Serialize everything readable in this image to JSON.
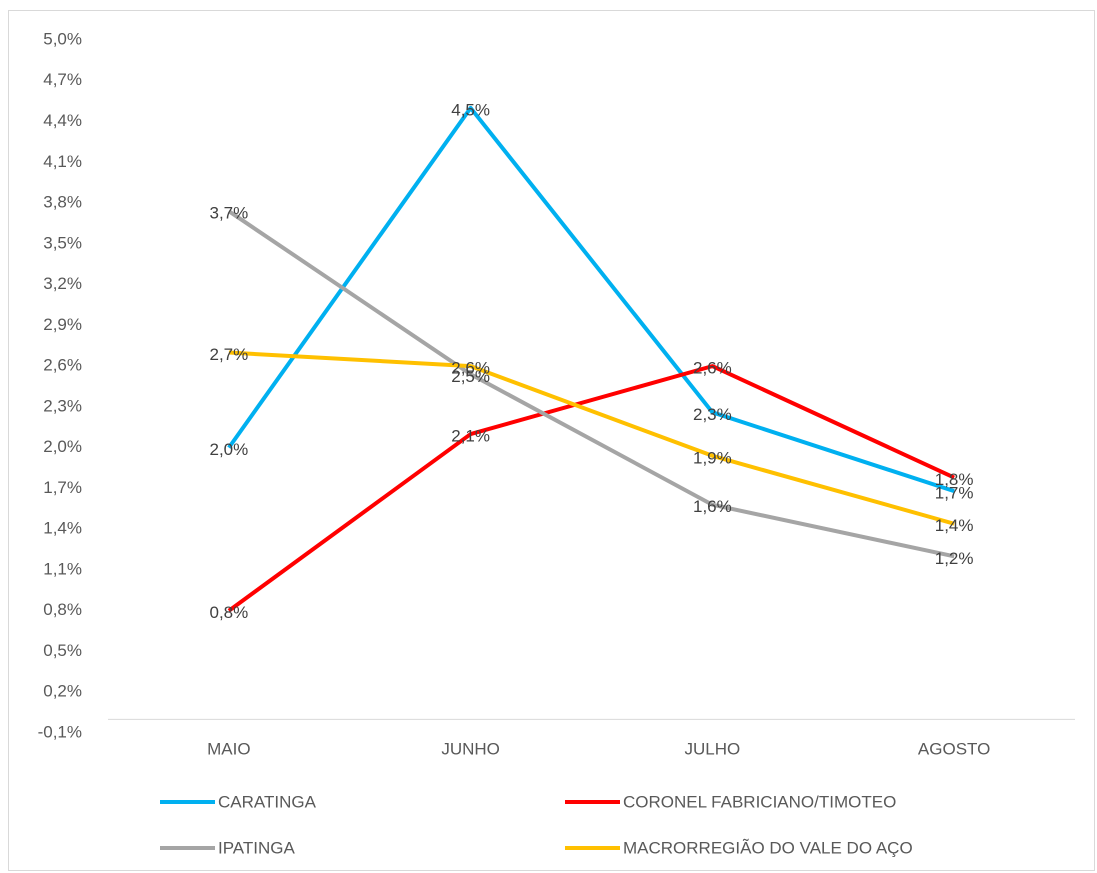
{
  "chart_data": {
    "type": "line",
    "categories": [
      "MAIO",
      "JUNHO",
      "JULHO",
      "AGOSTO"
    ],
    "series": [
      {
        "name": "CARATINGA",
        "color": "#00b0f0",
        "values": [
          2.0,
          4.5,
          2.26,
          1.68
        ],
        "value_labels": [
          "2,0%",
          "4,5%",
          "2,3%",
          "1,7%"
        ]
      },
      {
        "name": "CORONEL FABRICIANO/TIMOTEO",
        "color": "#ff0000",
        "values": [
          0.8,
          2.1,
          2.6,
          1.78
        ],
        "value_labels": [
          "0,8%",
          "2,1%",
          "2,6%",
          "1,8%"
        ]
      },
      {
        "name": "IPATINGA",
        "color": "#a5a5a5",
        "values": [
          3.74,
          2.54,
          1.58,
          1.2
        ],
        "value_labels": [
          "3,7%",
          "2,5%",
          "1,6%",
          "1,2%"
        ]
      },
      {
        "name": "MACRORREGIÃO DO VALE DO AÇO",
        "color": "#ffc000",
        "values": [
          2.7,
          2.6,
          1.94,
          1.44
        ],
        "value_labels": [
          "2,7%",
          "2,6%",
          "1,9%",
          "1,4%"
        ]
      }
    ],
    "ylim": [
      -0.1,
      5.0
    ],
    "yticks": [
      {
        "value": -0.1,
        "label": "-0,1%"
      },
      {
        "value": 0.2,
        "label": "0,2%"
      },
      {
        "value": 0.5,
        "label": "0,5%"
      },
      {
        "value": 0.8,
        "label": "0,8%"
      },
      {
        "value": 1.1,
        "label": "1,1%"
      },
      {
        "value": 1.4,
        "label": "1,4%"
      },
      {
        "value": 1.7,
        "label": "1,7%"
      },
      {
        "value": 2.0,
        "label": "2,0%"
      },
      {
        "value": 2.3,
        "label": "2,3%"
      },
      {
        "value": 2.6,
        "label": "2,6%"
      },
      {
        "value": 2.9,
        "label": "2,9%"
      },
      {
        "value": 3.2,
        "label": "3,2%"
      },
      {
        "value": 3.5,
        "label": "3,5%"
      },
      {
        "value": 3.8,
        "label": "3,8%"
      },
      {
        "value": 4.1,
        "label": "4,1%"
      },
      {
        "value": 4.4,
        "label": "4,4%"
      },
      {
        "value": 4.7,
        "label": "4,7%"
      },
      {
        "value": 5.0,
        "label": "5,0%"
      }
    ],
    "grid": false,
    "legend": "bottom"
  }
}
